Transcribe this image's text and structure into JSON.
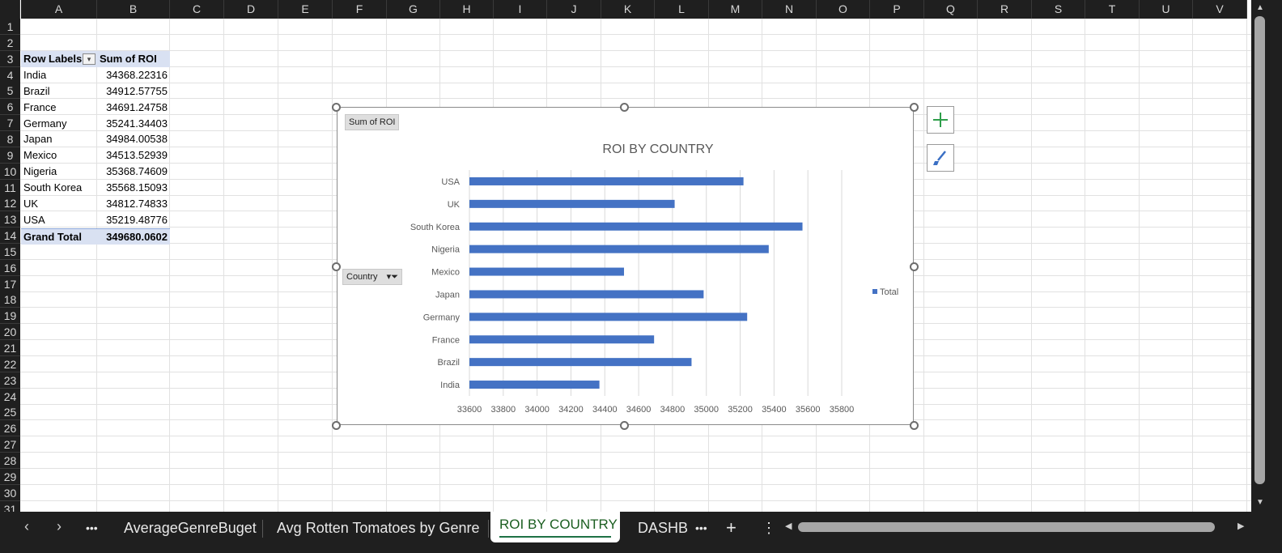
{
  "columns": [
    "A",
    "B",
    "C",
    "D",
    "E",
    "F",
    "G",
    "H",
    "I",
    "J",
    "K",
    "L",
    "M",
    "N",
    "O",
    "P",
    "Q",
    "R",
    "S",
    "T",
    "U",
    "V"
  ],
  "rows": [
    "1",
    "2",
    "3",
    "4",
    "5",
    "6",
    "7",
    "8",
    "9",
    "10",
    "11",
    "12",
    "13",
    "14",
    "15",
    "16",
    "17",
    "18",
    "19",
    "20",
    "21",
    "22",
    "23",
    "24",
    "25",
    "26",
    "27",
    "28",
    "29",
    "30",
    "31"
  ],
  "pivot": {
    "row_labels_header": "Row Labels",
    "value_header": "Sum of ROI",
    "rows": [
      {
        "label": "India",
        "value": "34368.22316"
      },
      {
        "label": "Brazil",
        "value": "34912.57755"
      },
      {
        "label": "France",
        "value": "34691.24758"
      },
      {
        "label": "Germany",
        "value": "35241.34403"
      },
      {
        "label": "Japan",
        "value": "34984.00538"
      },
      {
        "label": "Mexico",
        "value": "34513.52939"
      },
      {
        "label": "Nigeria",
        "value": "35368.74609"
      },
      {
        "label": "South Korea",
        "value": "35568.15093"
      },
      {
        "label": "UK",
        "value": "34812.74833"
      },
      {
        "label": "USA",
        "value": "35219.48776"
      }
    ],
    "grand_total_label": "Grand Total",
    "grand_total_value": "349680.0602"
  },
  "chart_field_buttons": {
    "value_field": "Sum of ROI",
    "axis_field": "Country"
  },
  "chart_data": {
    "type": "bar",
    "orientation": "horizontal",
    "title": "ROI BY  COUNTRY",
    "categories": [
      "India",
      "Brazil",
      "France",
      "Germany",
      "Japan",
      "Mexico",
      "Nigeria",
      "South Korea",
      "UK",
      "USA"
    ],
    "series": [
      {
        "name": "Total",
        "values": [
          34368.22316,
          34912.57755,
          34691.24758,
          35241.34403,
          34984.00538,
          34513.52939,
          35368.74609,
          35568.15093,
          34812.74833,
          35219.48776
        ]
      }
    ],
    "xlim": [
      33600,
      35800
    ],
    "xticks": [
      33600,
      33800,
      34000,
      34200,
      34400,
      34600,
      34800,
      35000,
      35200,
      35400,
      35600,
      35800
    ],
    "grid": true,
    "legend": "right",
    "bar_color": "#4472c4"
  },
  "tabs": {
    "more_left": "•••",
    "items": [
      {
        "label": "AverageGenreBuget",
        "active": false
      },
      {
        "label": "Avg Rotten Tomatoes by Genre",
        "active": false
      },
      {
        "label": "ROI BY COUNTRY",
        "active": true
      },
      {
        "label": "DASHBC",
        "active": false
      }
    ],
    "more_right": "•••",
    "add": "+",
    "options": "⋮"
  }
}
